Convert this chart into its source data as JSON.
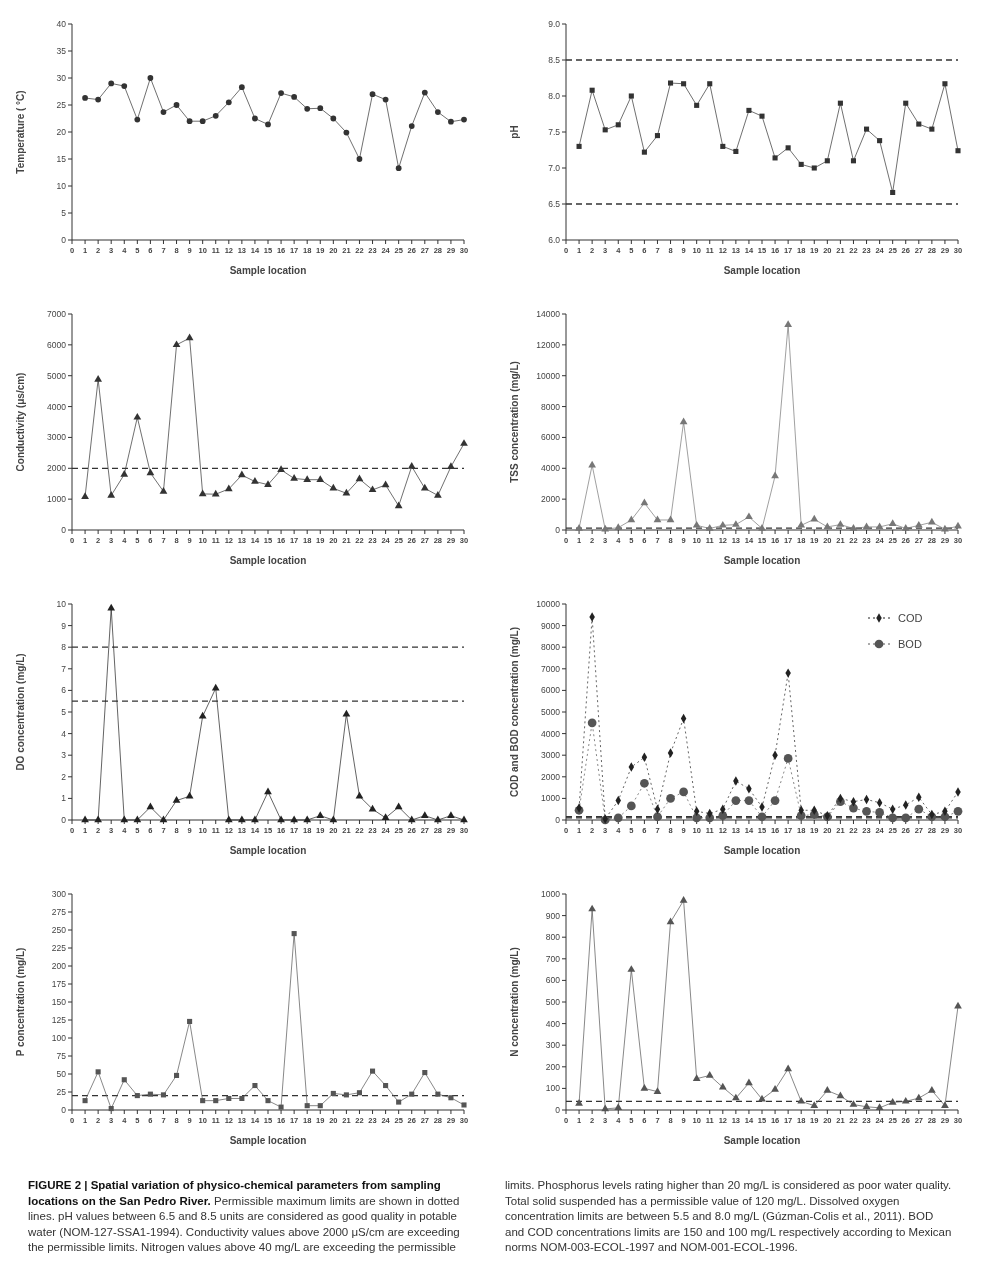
{
  "chart_data": [
    {
      "type": "line",
      "xlabel": "Sample location",
      "ylabel": "Temperature ( °C)",
      "x": [
        1,
        2,
        3,
        4,
        5,
        6,
        7,
        8,
        9,
        10,
        11,
        12,
        13,
        14,
        15,
        16,
        17,
        18,
        19,
        20,
        21,
        22,
        23,
        24,
        25,
        26,
        27,
        28,
        29,
        30
      ],
      "xlim": [
        0,
        30
      ],
      "xticks": [
        0,
        1,
        2,
        3,
        4,
        5,
        6,
        7,
        8,
        9,
        10,
        11,
        12,
        13,
        14,
        15,
        16,
        17,
        18,
        19,
        20,
        21,
        22,
        23,
        24,
        25,
        26,
        27,
        28,
        29,
        30
      ],
      "ylim": [
        0,
        40
      ],
      "yticks": [
        0,
        5,
        10,
        15,
        20,
        25,
        30,
        35,
        40
      ],
      "marker": "circle",
      "line_style": "solid",
      "series": [
        {
          "color": "#333333",
          "values": [
            26.3,
            26,
            29,
            28.5,
            22.3,
            30,
            23.7,
            25,
            22,
            22,
            23,
            25.5,
            28.3,
            22.5,
            21.4,
            27.2,
            26.5,
            24.3,
            24.4,
            22.5,
            19.9,
            15,
            27,
            26,
            13.3,
            21.1,
            27.3,
            23.7,
            21.9,
            22.3
          ]
        }
      ]
    },
    {
      "type": "line",
      "xlabel": "Sample location",
      "ylabel": "pH",
      "x": [
        1,
        2,
        3,
        4,
        5,
        6,
        7,
        8,
        9,
        10,
        11,
        12,
        13,
        14,
        15,
        16,
        17,
        18,
        19,
        20,
        21,
        22,
        23,
        24,
        25,
        26,
        27,
        28,
        29,
        30
      ],
      "xlim": [
        0,
        30
      ],
      "xticks": [
        0,
        1,
        2,
        3,
        4,
        5,
        6,
        7,
        8,
        9,
        10,
        11,
        12,
        13,
        14,
        15,
        16,
        17,
        18,
        19,
        20,
        21,
        22,
        23,
        24,
        25,
        26,
        27,
        28,
        29,
        30
      ],
      "ylim": [
        6,
        9
      ],
      "yticks": [
        {
          "value": 6,
          "label": "6.0"
        },
        {
          "value": 6.5,
          "label": "6.5"
        },
        {
          "value": 7,
          "label": "7.0"
        },
        {
          "value": 7.5,
          "label": "7.5"
        },
        {
          "value": 8,
          "label": "8.0"
        },
        {
          "value": 8.5,
          "label": "8.5"
        },
        {
          "value": 9,
          "label": "9.0"
        }
      ],
      "marker": "square",
      "line_style": "solid",
      "ref_lines": [
        {
          "axis": "y",
          "value": 6.5,
          "line_style": "dashed"
        },
        {
          "axis": "y",
          "value": 8.5,
          "line_style": "dashed"
        }
      ],
      "series": [
        {
          "color": "#333333",
          "values": [
            7.3,
            8.08,
            7.53,
            7.6,
            8.0,
            7.22,
            7.45,
            8.18,
            8.17,
            7.87,
            8.17,
            7.3,
            7.23,
            7.8,
            7.72,
            7.14,
            7.28,
            7.05,
            7.0,
            7.1,
            7.9,
            7.1,
            7.54,
            7.38,
            6.66,
            7.9,
            7.61,
            7.54,
            8.17,
            7.24
          ]
        }
      ]
    },
    {
      "type": "line",
      "xlabel": "Sample location",
      "ylabel": "Conductivity (μs/cm)",
      "x": [
        1,
        2,
        3,
        4,
        5,
        6,
        7,
        8,
        9,
        10,
        11,
        12,
        13,
        14,
        15,
        16,
        17,
        18,
        19,
        20,
        21,
        22,
        23,
        24,
        25,
        26,
        27,
        28,
        29,
        30
      ],
      "xlim": [
        0,
        30
      ],
      "xticks": [
        0,
        1,
        2,
        3,
        4,
        5,
        6,
        7,
        8,
        9,
        10,
        11,
        12,
        13,
        14,
        15,
        16,
        17,
        18,
        19,
        20,
        21,
        22,
        23,
        24,
        25,
        26,
        27,
        28,
        29,
        30
      ],
      "ylim": [
        0,
        7000
      ],
      "yticks": [
        0,
        1000,
        2000,
        3000,
        4000,
        5000,
        6000,
        7000
      ],
      "marker": "triangle",
      "line_style": "solid",
      "ref_lines": [
        {
          "axis": "y",
          "value": 2000,
          "line_style": "dashed"
        }
      ],
      "series": [
        {
          "color": "#333333",
          "values": [
            1080,
            4880,
            1120,
            1800,
            3650,
            1850,
            1250,
            6000,
            6220,
            1170,
            1160,
            1330,
            1780,
            1570,
            1470,
            1950,
            1670,
            1630,
            1630,
            1350,
            1190,
            1650,
            1300,
            1460,
            780,
            2060,
            1350,
            1120,
            2050,
            2800
          ]
        }
      ]
    },
    {
      "type": "line",
      "xlabel": "Sample location",
      "ylabel": "TSS concentration (mg/L)",
      "x": [
        1,
        2,
        3,
        4,
        5,
        6,
        7,
        8,
        9,
        10,
        11,
        12,
        13,
        14,
        15,
        16,
        17,
        18,
        19,
        20,
        21,
        22,
        23,
        24,
        25,
        26,
        27,
        28,
        29,
        30
      ],
      "xlim": [
        0,
        30
      ],
      "xticks": [
        0,
        1,
        2,
        3,
        4,
        5,
        6,
        7,
        8,
        9,
        10,
        11,
        12,
        13,
        14,
        15,
        16,
        17,
        18,
        19,
        20,
        21,
        22,
        23,
        24,
        25,
        26,
        27,
        28,
        29,
        30
      ],
      "ylim": [
        0,
        14000
      ],
      "yticks": [
        0,
        2000,
        4000,
        6000,
        8000,
        10000,
        12000,
        14000
      ],
      "marker": "triangle",
      "line_style": "solid",
      "ref_lines": [
        {
          "axis": "y",
          "value": 120,
          "line_style": "dashed"
        }
      ],
      "series": [
        {
          "color": "#777777",
          "values": [
            100,
            4200,
            50,
            150,
            650,
            1750,
            650,
            650,
            7000,
            300,
            100,
            300,
            350,
            850,
            100,
            3500,
            13300,
            300,
            700,
            200,
            350,
            100,
            200,
            200,
            400,
            100,
            300,
            500,
            50,
            250
          ]
        }
      ]
    },
    {
      "type": "line",
      "xlabel": "Sample location",
      "ylabel": "DO concentration (mg/L)",
      "x": [
        1,
        2,
        3,
        4,
        5,
        6,
        7,
        8,
        9,
        10,
        11,
        12,
        13,
        14,
        15,
        16,
        17,
        18,
        19,
        20,
        21,
        22,
        23,
        24,
        25,
        26,
        27,
        28,
        29,
        30
      ],
      "xlim": [
        0,
        30
      ],
      "xticks": [
        0,
        1,
        2,
        3,
        4,
        5,
        6,
        7,
        8,
        9,
        10,
        11,
        12,
        13,
        14,
        15,
        16,
        17,
        18,
        19,
        20,
        21,
        22,
        23,
        24,
        25,
        26,
        27,
        28,
        29,
        30
      ],
      "ylim": [
        0,
        10
      ],
      "yticks": [
        0,
        1,
        2,
        3,
        4,
        5,
        6,
        7,
        8,
        9,
        10
      ],
      "marker": "triangle",
      "line_style": "solid",
      "ref_lines": [
        {
          "axis": "y",
          "value": 8,
          "line_style": "dashed"
        },
        {
          "axis": "y",
          "value": 5.5,
          "line_style": "dashed"
        }
      ],
      "series": [
        {
          "color": "#222222",
          "values": [
            0,
            0,
            9.8,
            0,
            0,
            0.6,
            0,
            0.9,
            1.1,
            4.8,
            6.1,
            0,
            0,
            0,
            1.3,
            0,
            0,
            0,
            0.2,
            0,
            4.9,
            1.1,
            0.5,
            0.1,
            0.6,
            0,
            0.2,
            0,
            0.2,
            0
          ]
        }
      ]
    },
    {
      "type": "line",
      "xlabel": "Sample location",
      "ylabel": "COD and BOD concentration (mg/L)",
      "x": [
        1,
        2,
        3,
        4,
        5,
        6,
        7,
        8,
        9,
        10,
        11,
        12,
        13,
        14,
        15,
        16,
        17,
        18,
        19,
        20,
        21,
        22,
        23,
        24,
        25,
        26,
        27,
        28,
        29,
        30
      ],
      "xlim": [
        0,
        30
      ],
      "xticks": [
        0,
        1,
        2,
        3,
        4,
        5,
        6,
        7,
        8,
        9,
        10,
        11,
        12,
        13,
        14,
        15,
        16,
        17,
        18,
        19,
        20,
        21,
        22,
        23,
        24,
        25,
        26,
        27,
        28,
        29,
        30
      ],
      "ylim": [
        0,
        10000
      ],
      "yticks": [
        0,
        1000,
        2000,
        3000,
        4000,
        5000,
        6000,
        7000,
        8000,
        9000,
        10000
      ],
      "line_style": "dotted",
      "legend": "top right",
      "ref_lines": [
        {
          "axis": "y",
          "value": 150,
          "line_style": "dashed"
        },
        {
          "axis": "y",
          "value": 100,
          "line_style": "dashed"
        }
      ],
      "series": [
        {
          "name": "COD",
          "color": "#222222",
          "marker": "diamond",
          "values": [
            550,
            9400,
            50,
            900,
            2450,
            2900,
            500,
            3100,
            4700,
            400,
            300,
            500,
            1800,
            1450,
            600,
            3000,
            6800,
            450,
            450,
            200,
            1000,
            850,
            950,
            800,
            500,
            700,
            1050,
            250,
            400,
            1300
          ]
        },
        {
          "name": "BOD",
          "color": "#555555",
          "marker": "circle",
          "values": [
            450,
            4500,
            0,
            100,
            650,
            1700,
            150,
            1000,
            1300,
            100,
            100,
            200,
            900,
            900,
            150,
            900,
            2850,
            200,
            250,
            150,
            850,
            550,
            400,
            350,
            100,
            100,
            500,
            150,
            150,
            400
          ]
        }
      ]
    },
    {
      "type": "line",
      "xlabel": "Sample location",
      "ylabel": "P concentration (mg/L)",
      "x": [
        1,
        2,
        3,
        4,
        5,
        6,
        7,
        8,
        9,
        10,
        11,
        12,
        13,
        14,
        15,
        16,
        17,
        18,
        19,
        20,
        21,
        22,
        23,
        24,
        25,
        26,
        27,
        28,
        29,
        30
      ],
      "xlim": [
        0,
        30
      ],
      "xticks": [
        0,
        1,
        2,
        3,
        4,
        5,
        6,
        7,
        8,
        9,
        10,
        11,
        12,
        13,
        14,
        15,
        16,
        17,
        18,
        19,
        20,
        21,
        22,
        23,
        24,
        25,
        26,
        27,
        28,
        29,
        30
      ],
      "ylim": [
        0,
        300
      ],
      "yticks": [
        0,
        25,
        50,
        75,
        100,
        125,
        150,
        175,
        200,
        225,
        250,
        275,
        300
      ],
      "marker": "square",
      "line_style": "solid",
      "ref_lines": [
        {
          "axis": "y",
          "value": 20,
          "line_style": "dashed"
        }
      ],
      "series": [
        {
          "color": "#555555",
          "values": [
            13,
            53,
            2,
            42,
            20,
            22,
            21,
            48,
            123,
            13,
            13,
            16,
            16,
            34,
            13,
            4,
            245,
            6,
            6,
            23,
            21,
            24,
            54,
            34,
            11,
            22,
            52,
            22,
            17,
            7
          ]
        }
      ]
    },
    {
      "type": "line",
      "xlabel": "Sample location",
      "ylabel": "N concentration (mg/L)",
      "x": [
        1,
        2,
        3,
        4,
        5,
        6,
        7,
        8,
        9,
        10,
        11,
        12,
        13,
        14,
        15,
        16,
        17,
        18,
        19,
        20,
        21,
        22,
        23,
        24,
        25,
        26,
        27,
        28,
        29,
        30
      ],
      "xlim": [
        0,
        30
      ],
      "xticks": [
        0,
        1,
        2,
        3,
        4,
        5,
        6,
        7,
        8,
        9,
        10,
        11,
        12,
        13,
        14,
        15,
        16,
        17,
        18,
        19,
        20,
        21,
        22,
        23,
        24,
        25,
        26,
        27,
        28,
        29,
        30
      ],
      "ylim": [
        0,
        1000
      ],
      "yticks": [
        0,
        100,
        200,
        300,
        400,
        500,
        600,
        700,
        800,
        900,
        1000
      ],
      "marker": "triangle",
      "line_style": "solid",
      "ref_lines": [
        {
          "axis": "y",
          "value": 40,
          "line_style": "dashed"
        }
      ],
      "series": [
        {
          "color": "#555555",
          "values": [
            30,
            930,
            5,
            10,
            650,
            100,
            85,
            870,
            970,
            145,
            160,
            105,
            55,
            125,
            50,
            95,
            190,
            40,
            20,
            90,
            65,
            25,
            15,
            10,
            35,
            40,
            55,
            90,
            20,
            480
          ]
        }
      ]
    },
    {
      "type": "other",
      "title": "FIGURE 2 | Spatial variation of physico-chemical parameters from sampling locations on the San Pedro River.",
      "annotations": [
        "Permissible maximum limits are shown in dotted lines. pH values between 6.5 and 8.5 units are considered as good quality in potable water (NOM-127-SSA1-1994). Conductivity values above 2000 μS/cm are exceeding the permissible limits. Nitrogen values above 40 mg/L are exceeding the permissible limits. Phosphorus levels rating higher than 20 mg/L is considered as poor water quality. Total solid suspended has a permissible value of 120 mg/L. Dissolved oxygen concentration limits are between 5.5 and 8.0 mg/L (Gúzman-Colis et al., 2011). BOD and COD concentrations limits are 150 and 100 mg/L respectively according to Mexican norms NOM-003-ECOL-1997 and NOM-001-ECOL-1996."
      ]
    }
  ]
}
